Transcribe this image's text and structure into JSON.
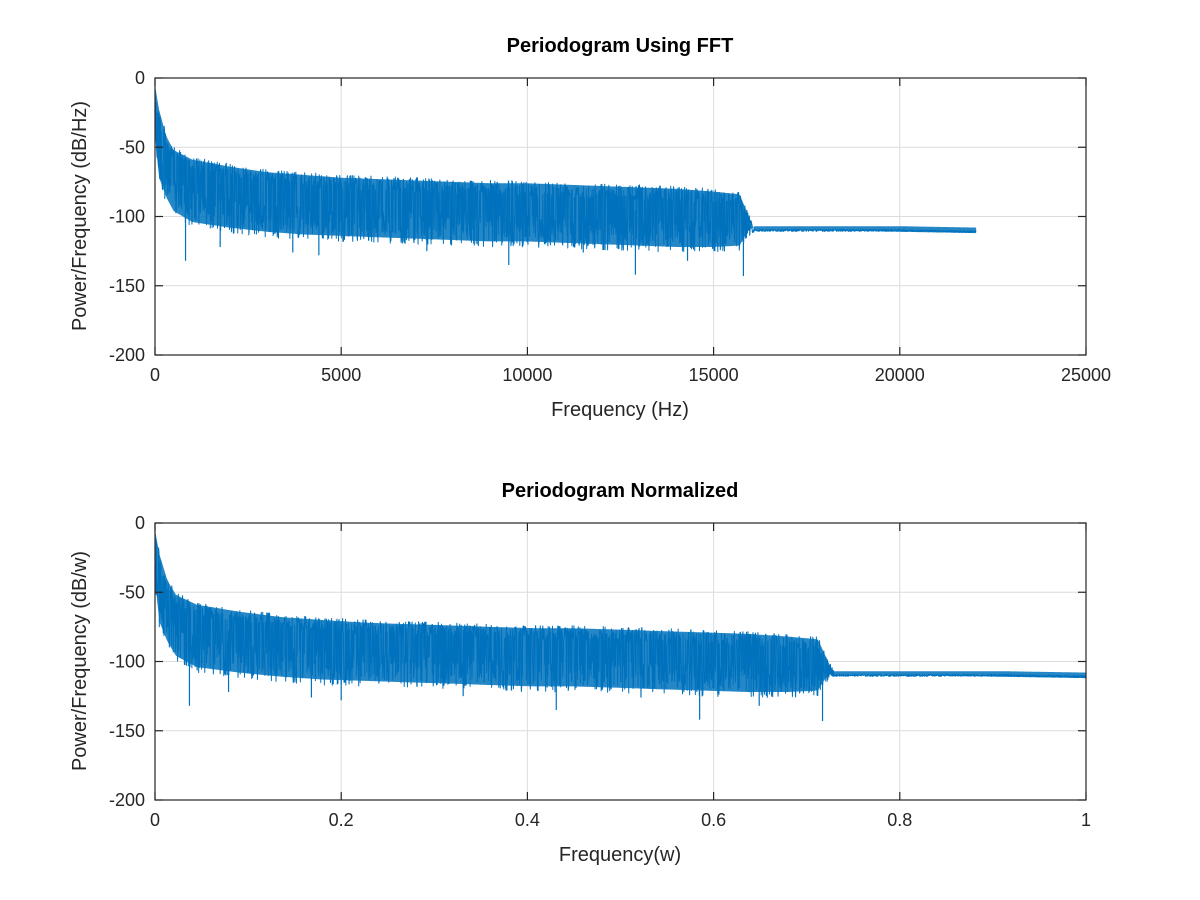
{
  "chart_data": [
    {
      "type": "line",
      "title": "Periodogram Using FFT",
      "xlabel": "Frequency (Hz)",
      "ylabel": "Power/Frequency (dB/Hz)",
      "xlim": [
        0,
        25000
      ],
      "ylim": [
        -200,
        0
      ],
      "xticks": [
        0,
        5000,
        10000,
        15000,
        20000,
        25000
      ],
      "xtick_labels": [
        "0",
        "5000",
        "10000",
        "15000",
        "20000",
        "25000"
      ],
      "yticks": [
        -200,
        -150,
        -100,
        -50,
        0
      ],
      "ytick_labels": [
        "-200",
        "-150",
        "-100",
        "-50",
        "0"
      ],
      "grid": true,
      "color": "#0072BD",
      "series": [
        {
          "style": "noisy-band",
          "x": [
            0,
            100,
            300,
            500,
            1000,
            2000,
            3000,
            4000,
            5000,
            6000,
            7000,
            8000,
            9000,
            10000,
            11000,
            12000,
            13000,
            14000,
            15000,
            15700,
            15900,
            16100,
            16500,
            18000,
            20000,
            22050
          ],
          "upper": [
            -3,
            -20,
            -40,
            -50,
            -57,
            -62,
            -66,
            -68,
            -70,
            -71,
            -72,
            -73,
            -74,
            -74,
            -75,
            -76,
            -77,
            -78,
            -80,
            -82,
            -95,
            -108,
            -108,
            -108,
            -109,
            -110
          ],
          "mid": [
            -20,
            -45,
            -58,
            -66,
            -73,
            -79,
            -83,
            -86,
            -88,
            -89,
            -90,
            -91,
            -92,
            -93,
            -94,
            -95,
            -96,
            -97,
            -98,
            -100,
            -105,
            -110,
            -110,
            -110,
            -110,
            -111
          ],
          "lower": [
            -45,
            -75,
            -90,
            -100,
            -108,
            -112,
            -115,
            -117,
            -118,
            -119,
            -120,
            -121,
            -122,
            -122,
            -123,
            -124,
            -125,
            -126,
            -126,
            -125,
            -115,
            -111,
            -111,
            -111,
            -111,
            -112
          ],
          "spikes_down": [
            [
              820,
              -132
            ],
            [
              1750,
              -122
            ],
            [
              3700,
              -126
            ],
            [
              4400,
              -128
            ],
            [
              7300,
              -125
            ],
            [
              9500,
              -135
            ],
            [
              11500,
              -126
            ],
            [
              12900,
              -142
            ],
            [
              14300,
              -132
            ],
            [
              15800,
              -143
            ]
          ]
        }
      ]
    },
    {
      "type": "line",
      "title": "Periodogram Normalized",
      "xlabel": "Frequency(w)",
      "ylabel": "Power/Frequency (dB/w)",
      "xlim": [
        0,
        1
      ],
      "ylim": [
        -200,
        0
      ],
      "xticks": [
        0,
        0.2,
        0.4,
        0.6,
        0.8,
        1
      ],
      "xtick_labels": [
        "0",
        "0.2",
        "0.4",
        "0.6",
        "0.8",
        "1"
      ],
      "yticks": [
        -200,
        -150,
        -100,
        -50,
        0
      ],
      "ytick_labels": [
        "-200",
        "-150",
        "-100",
        "-50",
        "0"
      ],
      "grid": true,
      "color": "#0072BD",
      "series": [
        {
          "style": "noisy-band",
          "x": [
            0,
            0.0045,
            0.0136,
            0.0227,
            0.045,
            0.09,
            0.136,
            0.18,
            0.227,
            0.27,
            0.32,
            0.36,
            0.41,
            0.45,
            0.5,
            0.54,
            0.59,
            0.635,
            0.68,
            0.712,
            0.721,
            0.73,
            0.75,
            0.82,
            0.91,
            1.0
          ],
          "upper": [
            -3,
            -20,
            -40,
            -50,
            -57,
            -62,
            -66,
            -68,
            -70,
            -71,
            -72,
            -73,
            -74,
            -74,
            -75,
            -76,
            -77,
            -78,
            -80,
            -82,
            -95,
            -108,
            -108,
            -108,
            -109,
            -110
          ],
          "mid": [
            -20,
            -45,
            -58,
            -66,
            -73,
            -79,
            -83,
            -86,
            -88,
            -89,
            -90,
            -91,
            -92,
            -93,
            -94,
            -95,
            -96,
            -97,
            -98,
            -100,
            -105,
            -110,
            -110,
            -110,
            -110,
            -111
          ],
          "lower": [
            -45,
            -75,
            -90,
            -100,
            -108,
            -112,
            -115,
            -117,
            -118,
            -119,
            -120,
            -121,
            -122,
            -122,
            -123,
            -124,
            -125,
            -126,
            -126,
            -125,
            -115,
            -111,
            -111,
            -111,
            -111,
            -112
          ],
          "spikes_down": [
            [
              0.037,
              -132
            ],
            [
              0.079,
              -122
            ],
            [
              0.168,
              -126
            ],
            [
              0.2,
              -128
            ],
            [
              0.331,
              -125
            ],
            [
              0.431,
              -135
            ],
            [
              0.522,
              -126
            ],
            [
              0.585,
              -142
            ],
            [
              0.649,
              -132
            ],
            [
              0.717,
              -143
            ]
          ]
        }
      ]
    }
  ]
}
